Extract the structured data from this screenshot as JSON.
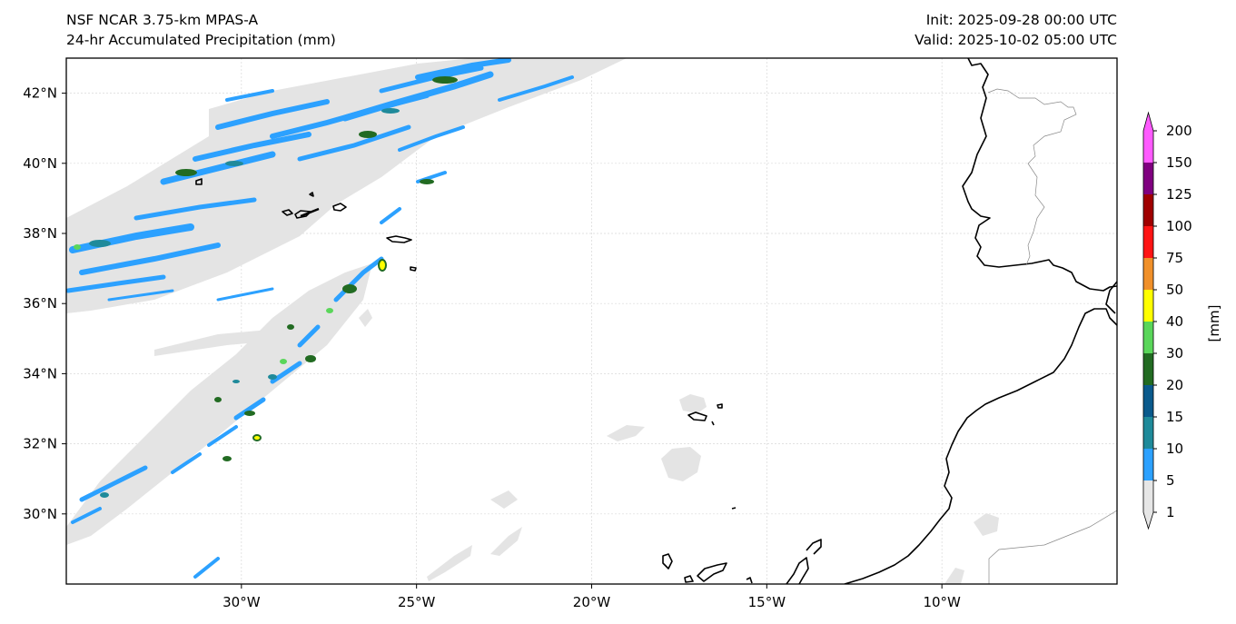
{
  "header": {
    "model": "NSF NCAR 3.75-km MPAS-A",
    "field": "24-hr Accumulated Precipitation (mm)",
    "init": "Init: 2025-09-28 00:00 UTC",
    "valid": "Valid: 2025-10-02 05:00 UTC"
  },
  "map": {
    "lat_labels": [
      "42°N",
      "40°N",
      "38°N",
      "36°N",
      "34°N",
      "32°N",
      "30°N"
    ],
    "lon_labels": [
      "30°W",
      "25°W",
      "20°W",
      "15°W",
      "10°W"
    ],
    "lat_range": [
      28,
      43
    ],
    "lon_range": [
      -35,
      -5
    ]
  },
  "colorbar": {
    "label": "[mm]",
    "ticks": [
      "1",
      "5",
      "10",
      "15",
      "20",
      "30",
      "40",
      "50",
      "75",
      "100",
      "125",
      "150",
      "200"
    ],
    "colors": [
      "#e6e6e6",
      "#2ca1ff",
      "#1f8a9a",
      "#0a5a8c",
      "#226b22",
      "#5ad65a",
      "#ffff00",
      "#f0902a",
      "#ff1414",
      "#a00000",
      "#800080",
      "#ff5aff"
    ]
  }
}
